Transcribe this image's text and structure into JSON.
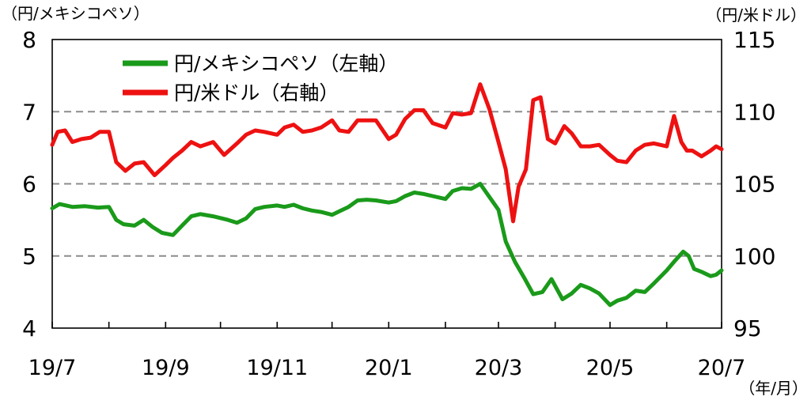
{
  "chart_data": {
    "type": "line",
    "left_axis": {
      "unit_label": "（円/メキシコペソ）",
      "ylim": [
        4,
        8
      ],
      "ticks": [
        4,
        5,
        6,
        7,
        8
      ]
    },
    "right_axis": {
      "unit_label": "（円/米ドル）",
      "ylim": [
        95,
        115
      ],
      "ticks": [
        95,
        100,
        105,
        110,
        115
      ]
    },
    "x_axis": {
      "unit_label": "（年/月）",
      "start": "2019-07-01",
      "end": "2020-07-01",
      "ticks": [
        {
          "date": "2019-07-01",
          "label": "19/7"
        },
        {
          "date": "2019-08-01",
          "label": ""
        },
        {
          "date": "2019-09-01",
          "label": "19/9"
        },
        {
          "date": "2019-10-01",
          "label": ""
        },
        {
          "date": "2019-11-01",
          "label": "19/11"
        },
        {
          "date": "2019-12-01",
          "label": ""
        },
        {
          "date": "2020-01-01",
          "label": "20/1"
        },
        {
          "date": "2020-02-01",
          "label": ""
        },
        {
          "date": "2020-03-01",
          "label": "20/3"
        },
        {
          "date": "2020-04-01",
          "label": ""
        },
        {
          "date": "2020-05-01",
          "label": "20/5"
        },
        {
          "date": "2020-06-01",
          "label": ""
        },
        {
          "date": "2020-07-01",
          "label": "20/7"
        }
      ]
    },
    "grid": {
      "horizontal_dashed_at_left_values": [
        5,
        6,
        7
      ]
    },
    "legend": {
      "placement": "top-left"
    },
    "series": [
      {
        "name": "円/メキシコペソ（左軸）",
        "axis": "left",
        "color": "#1a9a1a",
        "points": [
          [
            "2019-07-01",
            5.66
          ],
          [
            "2019-07-05",
            5.72
          ],
          [
            "2019-07-12",
            5.68
          ],
          [
            "2019-07-19",
            5.69
          ],
          [
            "2019-07-26",
            5.67
          ],
          [
            "2019-08-01",
            5.68
          ],
          [
            "2019-08-05",
            5.5
          ],
          [
            "2019-08-09",
            5.44
          ],
          [
            "2019-08-15",
            5.42
          ],
          [
            "2019-08-20",
            5.5
          ],
          [
            "2019-08-25",
            5.4
          ],
          [
            "2019-08-30",
            5.32
          ],
          [
            "2019-09-05",
            5.29
          ],
          [
            "2019-09-10",
            5.42
          ],
          [
            "2019-09-15",
            5.55
          ],
          [
            "2019-09-20",
            5.58
          ],
          [
            "2019-09-27",
            5.55
          ],
          [
            "2019-10-05",
            5.5
          ],
          [
            "2019-10-10",
            5.46
          ],
          [
            "2019-10-15",
            5.52
          ],
          [
            "2019-10-20",
            5.65
          ],
          [
            "2019-10-25",
            5.68
          ],
          [
            "2019-11-01",
            5.7
          ],
          [
            "2019-11-05",
            5.68
          ],
          [
            "2019-11-10",
            5.71
          ],
          [
            "2019-11-15",
            5.66
          ],
          [
            "2019-11-20",
            5.63
          ],
          [
            "2019-11-25",
            5.61
          ],
          [
            "2019-12-01",
            5.57
          ],
          [
            "2019-12-05",
            5.62
          ],
          [
            "2019-12-10",
            5.68
          ],
          [
            "2019-12-15",
            5.77
          ],
          [
            "2019-12-20",
            5.78
          ],
          [
            "2019-12-25",
            5.77
          ],
          [
            "2020-01-01",
            5.74
          ],
          [
            "2020-01-05",
            5.76
          ],
          [
            "2020-01-10",
            5.83
          ],
          [
            "2020-01-15",
            5.88
          ],
          [
            "2020-01-20",
            5.86
          ],
          [
            "2020-01-25",
            5.83
          ],
          [
            "2020-02-01",
            5.79
          ],
          [
            "2020-02-05",
            5.9
          ],
          [
            "2020-02-10",
            5.94
          ],
          [
            "2020-02-15",
            5.93
          ],
          [
            "2020-02-20",
            6.0
          ],
          [
            "2020-02-25",
            5.82
          ],
          [
            "2020-03-01",
            5.64
          ],
          [
            "2020-03-05",
            5.2
          ],
          [
            "2020-03-10",
            4.92
          ],
          [
            "2020-03-15",
            4.7
          ],
          [
            "2020-03-20",
            4.47
          ],
          [
            "2020-03-25",
            4.5
          ],
          [
            "2020-03-30",
            4.68
          ],
          [
            "2020-04-05",
            4.4
          ],
          [
            "2020-04-10",
            4.48
          ],
          [
            "2020-04-15",
            4.6
          ],
          [
            "2020-04-20",
            4.55
          ],
          [
            "2020-04-25",
            4.48
          ],
          [
            "2020-05-01",
            4.32
          ],
          [
            "2020-05-05",
            4.38
          ],
          [
            "2020-05-10",
            4.42
          ],
          [
            "2020-05-15",
            4.52
          ],
          [
            "2020-05-20",
            4.5
          ],
          [
            "2020-05-25",
            4.62
          ],
          [
            "2020-06-01",
            4.8
          ],
          [
            "2020-06-05",
            4.92
          ],
          [
            "2020-06-10",
            5.06
          ],
          [
            "2020-06-13",
            5.0
          ],
          [
            "2020-06-16",
            4.82
          ],
          [
            "2020-06-20",
            4.78
          ],
          [
            "2020-06-25",
            4.72
          ],
          [
            "2020-06-28",
            4.74
          ],
          [
            "2020-07-01",
            4.8
          ]
        ]
      },
      {
        "name": "円/米ドル（右軸）",
        "axis": "right",
        "color": "#ee1111",
        "points": [
          [
            "2019-07-01",
            107.7
          ],
          [
            "2019-07-04",
            108.6
          ],
          [
            "2019-07-08",
            108.7
          ],
          [
            "2019-07-12",
            107.9
          ],
          [
            "2019-07-17",
            108.1
          ],
          [
            "2019-07-22",
            108.2
          ],
          [
            "2019-07-27",
            108.6
          ],
          [
            "2019-08-01",
            108.6
          ],
          [
            "2019-08-05",
            106.5
          ],
          [
            "2019-08-10",
            105.9
          ],
          [
            "2019-08-15",
            106.4
          ],
          [
            "2019-08-20",
            106.5
          ],
          [
            "2019-08-26",
            105.6
          ],
          [
            "2019-09-01",
            106.3
          ],
          [
            "2019-09-05",
            106.8
          ],
          [
            "2019-09-10",
            107.3
          ],
          [
            "2019-09-15",
            107.9
          ],
          [
            "2019-09-20",
            107.6
          ],
          [
            "2019-09-27",
            107.9
          ],
          [
            "2019-10-03",
            107.0
          ],
          [
            "2019-10-10",
            107.8
          ],
          [
            "2019-10-15",
            108.4
          ],
          [
            "2019-10-20",
            108.7
          ],
          [
            "2019-10-25",
            108.6
          ],
          [
            "2019-11-01",
            108.4
          ],
          [
            "2019-11-05",
            108.9
          ],
          [
            "2019-11-10",
            109.1
          ],
          [
            "2019-11-15",
            108.6
          ],
          [
            "2019-11-20",
            108.7
          ],
          [
            "2019-11-25",
            108.9
          ],
          [
            "2019-12-01",
            109.4
          ],
          [
            "2019-12-05",
            108.7
          ],
          [
            "2019-12-10",
            108.6
          ],
          [
            "2019-12-15",
            109.4
          ],
          [
            "2019-12-20",
            109.4
          ],
          [
            "2019-12-25",
            109.4
          ],
          [
            "2020-01-01",
            108.1
          ],
          [
            "2020-01-05",
            108.4
          ],
          [
            "2020-01-10",
            109.5
          ],
          [
            "2020-01-15",
            110.1
          ],
          [
            "2020-01-20",
            110.1
          ],
          [
            "2020-01-25",
            109.2
          ],
          [
            "2020-02-01",
            108.9
          ],
          [
            "2020-02-05",
            109.9
          ],
          [
            "2020-02-10",
            109.8
          ],
          [
            "2020-02-15",
            109.9
          ],
          [
            "2020-02-20",
            111.9
          ],
          [
            "2020-02-25",
            110.2
          ],
          [
            "2020-03-01",
            107.9
          ],
          [
            "2020-03-05",
            106.0
          ],
          [
            "2020-03-09",
            102.4
          ],
          [
            "2020-03-12",
            104.8
          ],
          [
            "2020-03-16",
            106.0
          ],
          [
            "2020-03-20",
            110.8
          ],
          [
            "2020-03-24",
            111.0
          ],
          [
            "2020-03-28",
            108.1
          ],
          [
            "2020-04-01",
            107.8
          ],
          [
            "2020-04-06",
            109.0
          ],
          [
            "2020-04-10",
            108.5
          ],
          [
            "2020-04-15",
            107.6
          ],
          [
            "2020-04-20",
            107.6
          ],
          [
            "2020-04-25",
            107.7
          ],
          [
            "2020-05-01",
            107.0
          ],
          [
            "2020-05-05",
            106.6
          ],
          [
            "2020-05-10",
            106.5
          ],
          [
            "2020-05-15",
            107.3
          ],
          [
            "2020-05-20",
            107.7
          ],
          [
            "2020-05-25",
            107.8
          ],
          [
            "2020-06-01",
            107.6
          ],
          [
            "2020-06-05",
            109.7
          ],
          [
            "2020-06-09",
            107.9
          ],
          [
            "2020-06-12",
            107.3
          ],
          [
            "2020-06-15",
            107.3
          ],
          [
            "2020-06-20",
            106.9
          ],
          [
            "2020-06-25",
            107.3
          ],
          [
            "2020-06-28",
            107.6
          ],
          [
            "2020-07-01",
            107.4
          ]
        ]
      }
    ]
  }
}
